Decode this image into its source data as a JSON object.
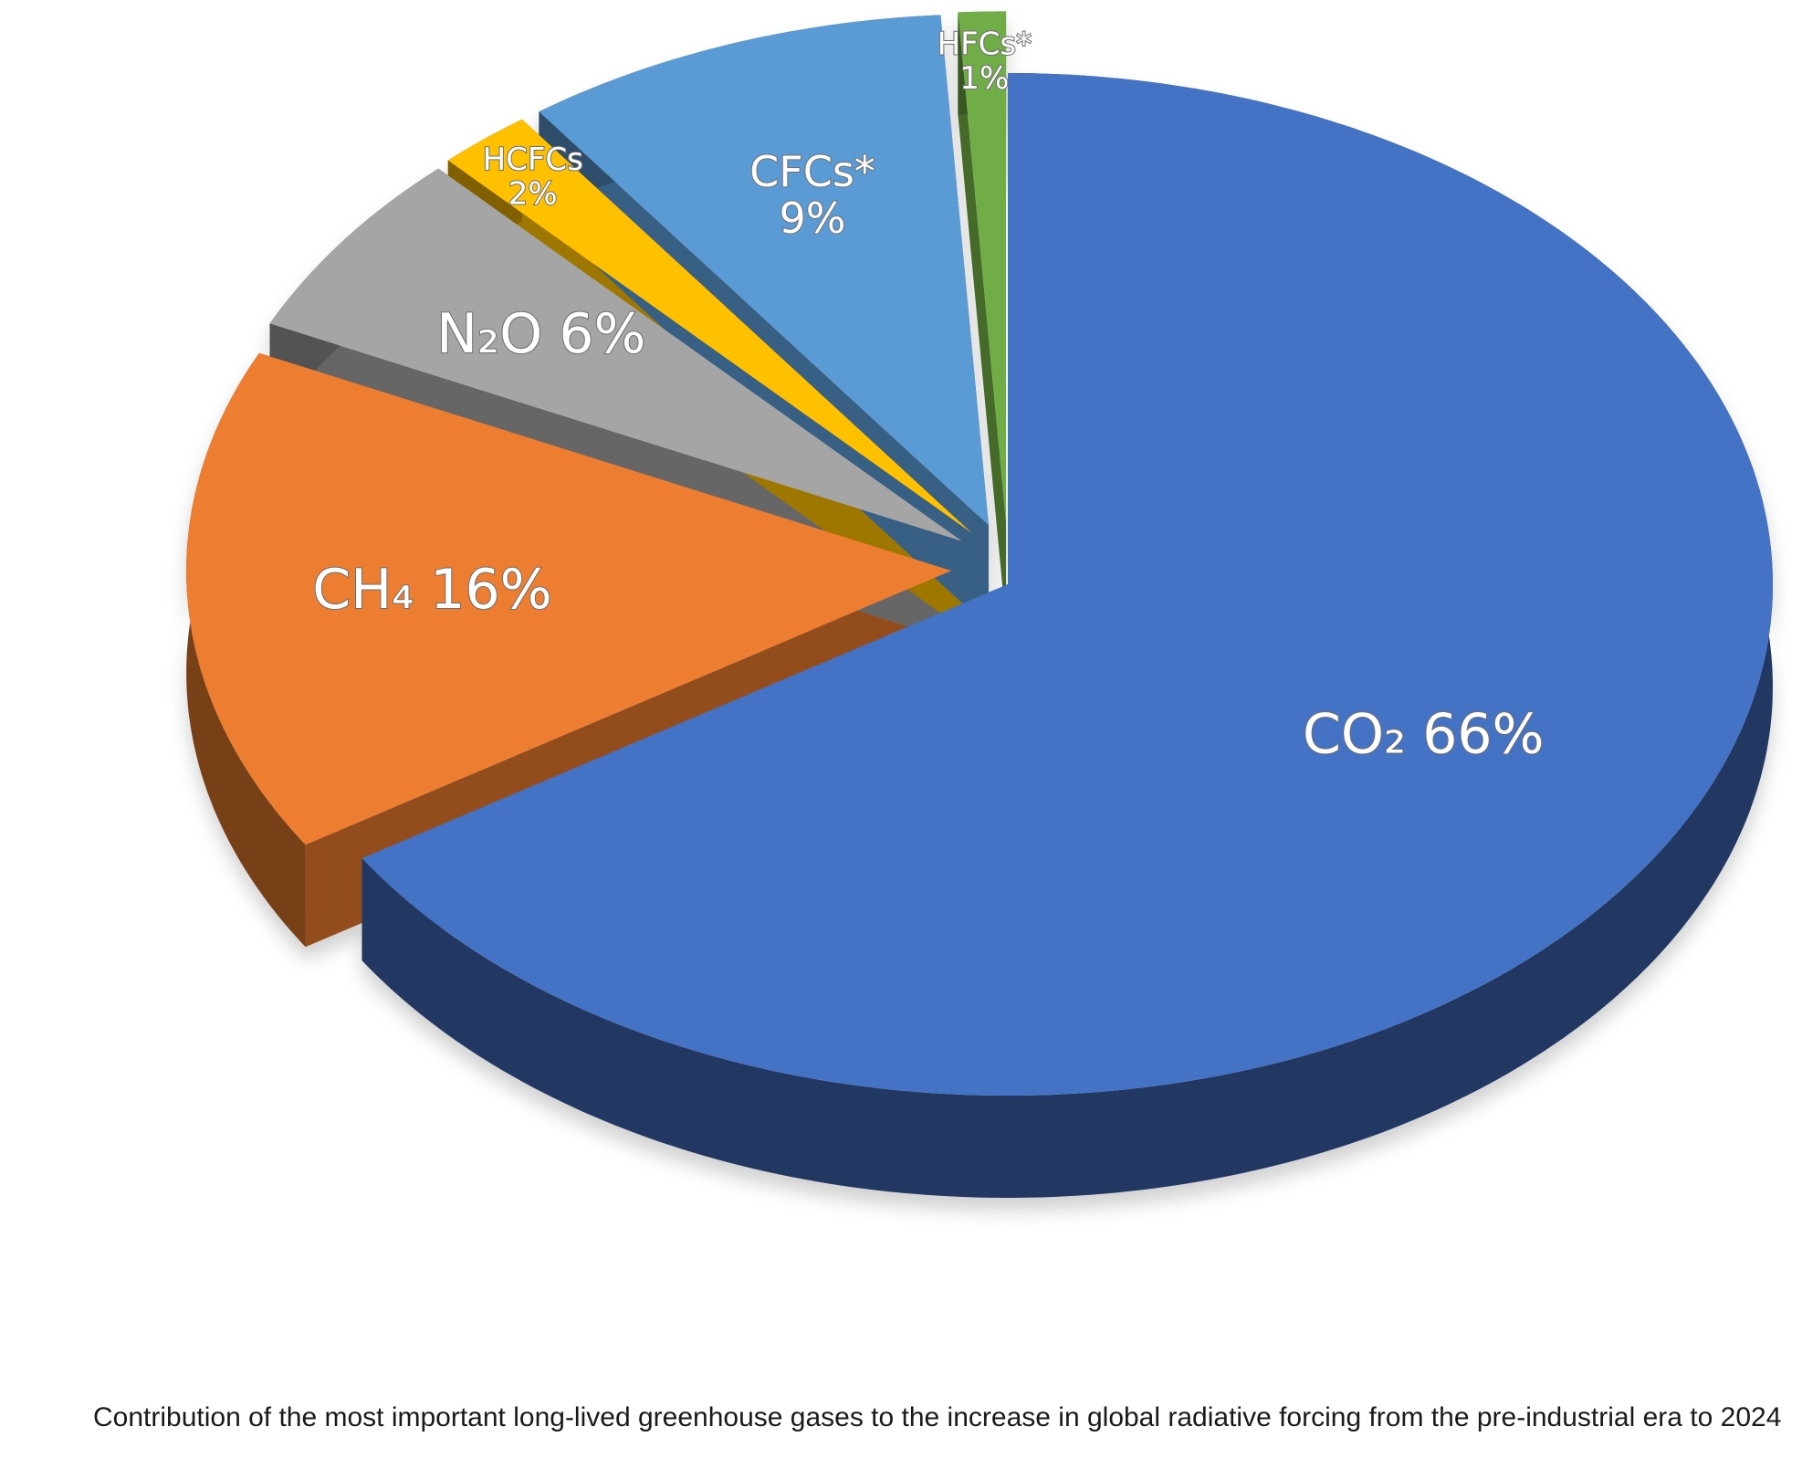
{
  "chart_data": {
    "type": "pie",
    "categories": [
      "CO₂",
      "CH₄",
      "N₂O",
      "HCFCs",
      "CFCs*",
      "HFCs*"
    ],
    "values": [
      66,
      16,
      6,
      2,
      9,
      1
    ],
    "value_labels": [
      "66%",
      "16%",
      "6%",
      "2%",
      "9%",
      "1%"
    ],
    "colors": [
      "#4472c4",
      "#ed7d31",
      "#a5a5a5",
      "#ffc000",
      "#5b9bd5",
      "#70ad47"
    ],
    "caption": "Contribution of the most important long-lived greenhouse gases to the increase in global radiative forcing from the pre-industrial era to 2024"
  }
}
